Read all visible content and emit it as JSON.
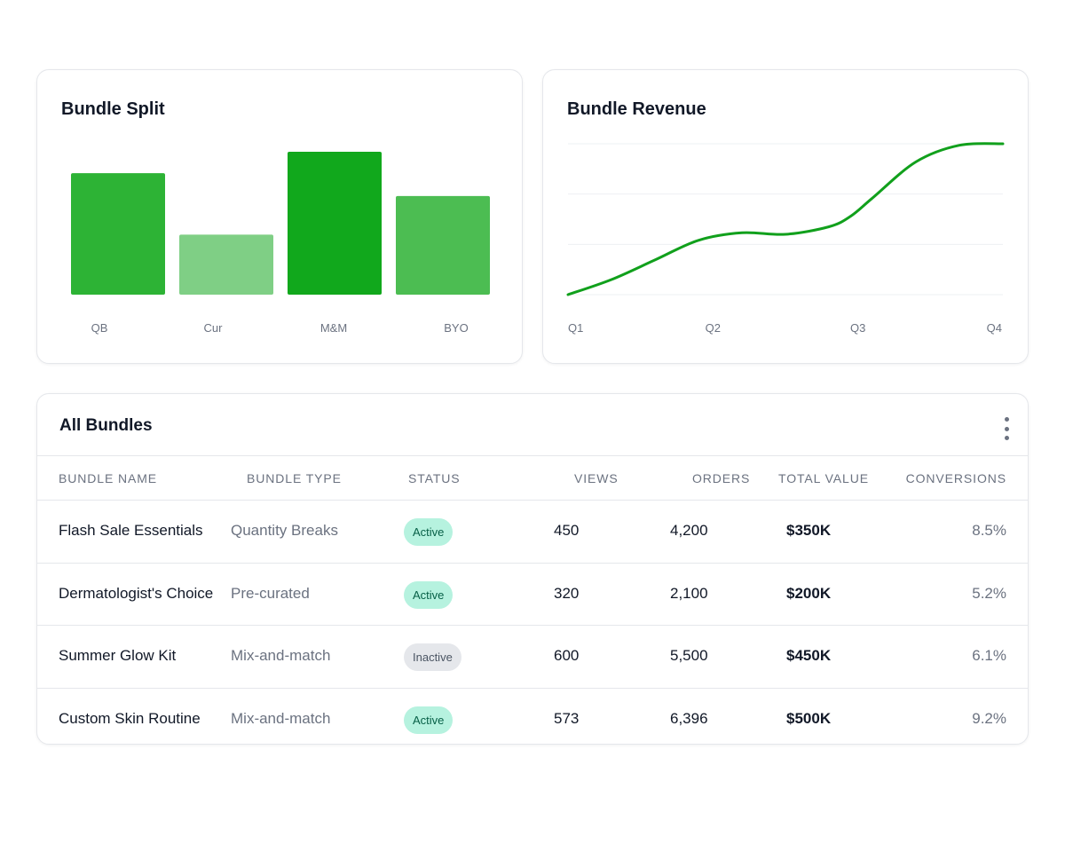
{
  "colors": {
    "bar_qb": "#2db335",
    "bar_cur": "#7fcf85",
    "bar_mm": "#11a81c",
    "bar_byo": "#4cbd52",
    "line": "#11a01c",
    "grid": "#eef0f3"
  },
  "bundle_split": {
    "title": "Bundle Split",
    "chart_data": {
      "type": "bar",
      "categories": [
        "QB",
        "Cur",
        "M&M",
        "BYO"
      ],
      "values": [
        85,
        42,
        100,
        69
      ],
      "ylim": [
        0,
        100
      ]
    }
  },
  "bundle_revenue": {
    "title": "Bundle Revenue",
    "chart_data": {
      "type": "line",
      "categories": [
        "Q1",
        "Q2",
        "Q3",
        "Q4"
      ],
      "x": [
        0,
        0.1,
        0.2,
        0.3,
        0.4,
        0.5,
        0.6,
        0.65,
        0.7,
        0.8,
        0.9,
        1.0
      ],
      "y": [
        0,
        10,
        23,
        36,
        41,
        40,
        45,
        52,
        64,
        88,
        99,
        100
      ],
      "ylim": [
        0,
        100
      ],
      "grid": true
    }
  },
  "table": {
    "title": "All Bundles",
    "menu_icon": "kebab-icon",
    "columns": [
      "Bundle Name",
      "Bundle Type",
      "Status",
      "Views",
      "Orders",
      "Total Value",
      "Conversions"
    ],
    "rows": [
      {
        "name": "Flash Sale Essentials",
        "type": "Quantity Breaks",
        "status": "Active",
        "status_kind": "active",
        "views": "450",
        "orders": "4,200",
        "value": "$350K",
        "conversions": "8.5%"
      },
      {
        "name": "Dermatologist's Choice",
        "type": "Pre-curated",
        "status": "Active",
        "status_kind": "active",
        "views": "320",
        "orders": "2,100",
        "value": "$200K",
        "conversions": "5.2%"
      },
      {
        "name": "Summer Glow Kit",
        "type": "Mix-and-match",
        "status": "Inactive",
        "status_kind": "inactive",
        "views": "600",
        "orders": "5,500",
        "value": "$450K",
        "conversions": "6.1%"
      },
      {
        "name": "Custom Skin Routine",
        "type": "Mix-and-match",
        "status": "Active",
        "status_kind": "active",
        "views": "573",
        "orders": "6,396",
        "value": "$500K",
        "conversions": "9.2%"
      }
    ]
  }
}
